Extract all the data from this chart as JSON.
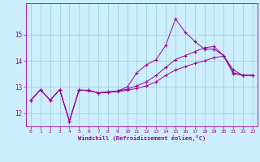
{
  "xlabel": "Windchill (Refroidissement éolien,°C)",
  "x": [
    0,
    1,
    2,
    3,
    4,
    5,
    6,
    7,
    8,
    9,
    10,
    11,
    12,
    13,
    14,
    15,
    16,
    17,
    18,
    19,
    20,
    21,
    22,
    23
  ],
  "line1": [
    12.5,
    12.9,
    12.5,
    12.9,
    11.7,
    12.9,
    12.85,
    12.78,
    12.82,
    12.85,
    13.0,
    13.55,
    13.85,
    14.05,
    14.6,
    15.6,
    15.1,
    14.75,
    14.45,
    14.45,
    14.2,
    13.65,
    13.45,
    13.45
  ],
  "line2": [
    12.5,
    12.9,
    12.5,
    12.9,
    11.7,
    12.88,
    12.88,
    12.78,
    12.8,
    12.85,
    12.92,
    13.05,
    13.2,
    13.45,
    13.75,
    14.05,
    14.2,
    14.35,
    14.5,
    14.55,
    14.2,
    13.55,
    13.45,
    13.45
  ],
  "line3": [
    12.5,
    12.9,
    12.5,
    12.9,
    11.7,
    12.88,
    12.88,
    12.78,
    12.8,
    12.82,
    12.88,
    12.95,
    13.05,
    13.2,
    13.45,
    13.65,
    13.78,
    13.9,
    14.0,
    14.12,
    14.18,
    13.52,
    13.45,
    13.45
  ],
  "ylim": [
    11.5,
    16.2
  ],
  "yticks": [
    12,
    13,
    14,
    15
  ],
  "xlim": [
    -0.5,
    23.5
  ],
  "line_color": "#990099",
  "bg_color": "#cceeff",
  "grid_color": "#99cccc",
  "tick_color": "#990099",
  "label_color": "#990099"
}
